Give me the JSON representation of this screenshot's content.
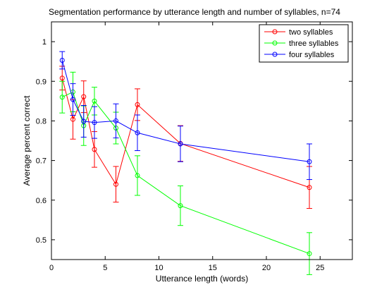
{
  "chart_data": {
    "type": "line",
    "title": "Segmentation performance by utterance length and number of syllables, n=74",
    "xlabel": "Utterance length (words)",
    "ylabel": "Average percent correct",
    "xlim": [
      0,
      28
    ],
    "ylim": [
      0.45,
      1.05
    ],
    "xticks": [
      0,
      5,
      10,
      15,
      20,
      25
    ],
    "yticks": [
      0.5,
      0.6,
      0.7,
      0.8,
      0.9,
      1
    ],
    "x_tick_labels": [
      "0",
      "5",
      "10",
      "15",
      "20",
      "25"
    ],
    "y_tick_labels": [
      "0.5",
      "0.6",
      "0.7",
      "0.8",
      "0.9",
      "1"
    ],
    "grid": false,
    "legend_position": "top-right",
    "x": [
      1,
      2,
      3,
      4,
      6,
      8,
      12,
      24
    ],
    "series": [
      {
        "name": "two syllables",
        "color": "#ff0000",
        "values": [
          0.908,
          0.804,
          0.861,
          0.728,
          0.64,
          0.841,
          0.743,
          0.632
        ],
        "errors": [
          0.03,
          0.05,
          0.04,
          0.045,
          0.045,
          0.04,
          0.045,
          0.053
        ]
      },
      {
        "name": "three syllables",
        "color": "#00ff00",
        "values": [
          0.86,
          0.873,
          0.788,
          0.85,
          0.782,
          0.662,
          0.586,
          0.465
        ],
        "errors": [
          0.04,
          0.05,
          0.05,
          0.035,
          0.04,
          0.05,
          0.05,
          0.053
        ]
      },
      {
        "name": "four syllables",
        "color": "#0000ff",
        "values": [
          0.953,
          0.854,
          0.799,
          0.796,
          0.8,
          0.77,
          0.742,
          0.697
        ],
        "errors": [
          0.022,
          0.04,
          0.04,
          0.04,
          0.043,
          0.045,
          0.045,
          0.045
        ]
      }
    ]
  }
}
